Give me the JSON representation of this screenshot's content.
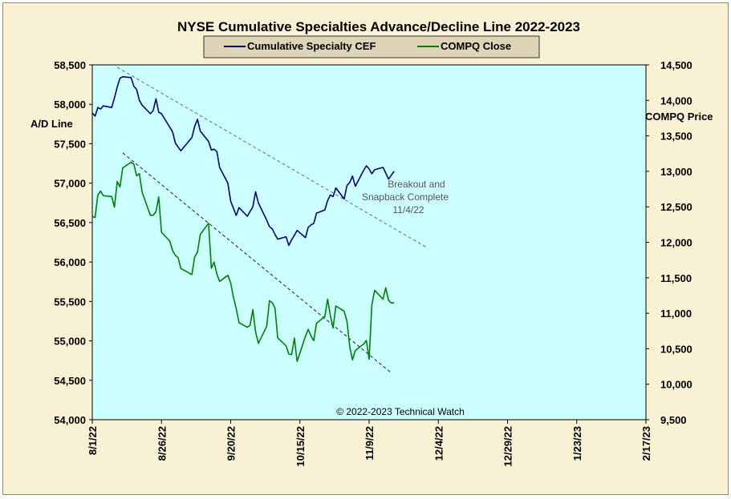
{
  "chart_data": {
    "type": "line",
    "title": "NYSE Cumulative  Specialties  Advance/Decline  Line  2022-2023",
    "left_axis": {
      "label": "A/D Line",
      "ylim": [
        54000,
        58500
      ],
      "ticks": [
        "54,000",
        "54,500",
        "55,000",
        "55,500",
        "56,000",
        "56,500",
        "57,000",
        "57,500",
        "58,000",
        "58,500"
      ]
    },
    "right_axis": {
      "label": "COMPQ Price",
      "ylim": [
        9500,
        14500
      ],
      "ticks": [
        "9,500",
        "10,000",
        "10,500",
        "11,000",
        "11,500",
        "12,000",
        "12,500",
        "13,000",
        "13,500",
        "14,000",
        "14,500"
      ]
    },
    "x_axis": {
      "start": "2022-08-01",
      "end": "2023-02-17",
      "tick_labels": [
        "8/1/22",
        "8/26/22",
        "9/20/22",
        "10/15/22",
        "11/9/22",
        "12/4/22",
        "12/29/22",
        "1/23/23",
        "2/17/23"
      ]
    },
    "grid": false,
    "legend_position": "top-center",
    "series": [
      {
        "name": "Cumulative Specialty CEF",
        "axis": "left",
        "color": "#000080",
        "x": [
          "2022-08-01",
          "2022-08-02",
          "2022-08-03",
          "2022-08-04",
          "2022-08-05",
          "2022-08-08",
          "2022-08-09",
          "2022-08-10",
          "2022-08-11",
          "2022-08-12",
          "2022-08-15",
          "2022-08-16",
          "2022-08-17",
          "2022-08-18",
          "2022-08-19",
          "2022-08-22",
          "2022-08-23",
          "2022-08-24",
          "2022-08-25",
          "2022-08-26",
          "2022-08-29",
          "2022-08-30",
          "2022-08-31",
          "2022-09-01",
          "2022-09-02",
          "2022-09-06",
          "2022-09-07",
          "2022-09-08",
          "2022-09-09",
          "2022-09-12",
          "2022-09-13",
          "2022-09-14",
          "2022-09-15",
          "2022-09-16",
          "2022-09-19",
          "2022-09-20",
          "2022-09-21",
          "2022-09-22",
          "2022-09-23",
          "2022-09-26",
          "2022-09-27",
          "2022-09-28",
          "2022-09-29",
          "2022-09-30",
          "2022-10-03",
          "2022-10-04",
          "2022-10-05",
          "2022-10-06",
          "2022-10-07",
          "2022-10-10",
          "2022-10-11",
          "2022-10-12",
          "2022-10-13",
          "2022-10-14",
          "2022-10-17",
          "2022-10-18",
          "2022-10-19",
          "2022-10-20",
          "2022-10-21",
          "2022-10-24",
          "2022-10-25",
          "2022-10-26",
          "2022-10-27",
          "2022-10-28",
          "2022-10-31",
          "2022-11-01",
          "2022-11-02",
          "2022-11-03",
          "2022-11-04",
          "2022-11-07",
          "2022-11-08",
          "2022-11-09",
          "2022-11-10",
          "2022-11-11",
          "2022-11-14",
          "2022-11-15",
          "2022-11-16",
          "2022-11-17",
          "2022-11-18"
        ],
        "values": [
          57890,
          57850,
          57960,
          57940,
          57980,
          57960,
          58080,
          58220,
          58330,
          58350,
          58340,
          58230,
          58190,
          58050,
          57990,
          57880,
          57920,
          58070,
          57900,
          57880,
          57710,
          57650,
          57510,
          57460,
          57410,
          57580,
          57720,
          57810,
          57660,
          57530,
          57420,
          57430,
          57400,
          57200,
          57000,
          56770,
          56680,
          56590,
          56690,
          56580,
          56640,
          56700,
          56890,
          56750,
          56530,
          56450,
          56420,
          56350,
          56290,
          56320,
          56210,
          56280,
          56340,
          56400,
          56310,
          56440,
          56470,
          56490,
          56620,
          56660,
          56780,
          56850,
          56830,
          56940,
          56800,
          56970,
          57010,
          57090,
          56960,
          57160,
          57220,
          57180,
          57120,
          57170,
          57200,
          57130,
          57050,
          57100,
          57150
        ]
      },
      {
        "name": "COMPQ Close",
        "axis": "right",
        "color": "#008000",
        "x": [
          "2022-08-01",
          "2022-08-02",
          "2022-08-03",
          "2022-08-04",
          "2022-08-05",
          "2022-08-08",
          "2022-08-09",
          "2022-08-10",
          "2022-08-11",
          "2022-08-12",
          "2022-08-15",
          "2022-08-16",
          "2022-08-17",
          "2022-08-18",
          "2022-08-19",
          "2022-08-22",
          "2022-08-23",
          "2022-08-24",
          "2022-08-25",
          "2022-08-26",
          "2022-08-29",
          "2022-08-30",
          "2022-08-31",
          "2022-09-01",
          "2022-09-02",
          "2022-09-06",
          "2022-09-07",
          "2022-09-08",
          "2022-09-09",
          "2022-09-12",
          "2022-09-13",
          "2022-09-14",
          "2022-09-15",
          "2022-09-16",
          "2022-09-19",
          "2022-09-20",
          "2022-09-21",
          "2022-09-22",
          "2022-09-23",
          "2022-09-26",
          "2022-09-27",
          "2022-09-28",
          "2022-09-29",
          "2022-09-30",
          "2022-10-03",
          "2022-10-04",
          "2022-10-05",
          "2022-10-06",
          "2022-10-07",
          "2022-10-10",
          "2022-10-11",
          "2022-10-12",
          "2022-10-13",
          "2022-10-14",
          "2022-10-17",
          "2022-10-18",
          "2022-10-19",
          "2022-10-20",
          "2022-10-21",
          "2022-10-24",
          "2022-10-25",
          "2022-10-26",
          "2022-10-27",
          "2022-10-28",
          "2022-10-31",
          "2022-11-01",
          "2022-11-02",
          "2022-11-03",
          "2022-11-04",
          "2022-11-07",
          "2022-11-08",
          "2022-11-09",
          "2022-11-10",
          "2022-11-11",
          "2022-11-14",
          "2022-11-15",
          "2022-11-16",
          "2022-11-17",
          "2022-11-18"
        ],
        "values": [
          12368,
          12349,
          12668,
          12721,
          12657,
          12644,
          12494,
          12855,
          12780,
          13047,
          13128,
          13102,
          12938,
          12966,
          12706,
          12381,
          12382,
          12432,
          12639,
          12142,
          12017,
          11883,
          11816,
          11785,
          11631,
          11545,
          11792,
          11862,
          12112,
          12267,
          11634,
          11720,
          11552,
          11448,
          11535,
          11425,
          11220,
          11066,
          10868,
          10803,
          10829,
          11052,
          10738,
          10576,
          10816,
          11176,
          11148,
          11073,
          10652,
          10542,
          10426,
          10418,
          10650,
          10321,
          10676,
          10773,
          10680,
          10614,
          10860,
          10953,
          11199,
          10970,
          10792,
          11103,
          11028,
          10891,
          10525,
          10343,
          10475,
          10565,
          10617,
          10353,
          11114,
          11324,
          11197,
          11359,
          11184,
          11145,
          11147
        ]
      }
    ],
    "trendlines": [
      {
        "axis": "left",
        "from": [
          "2022-08-10",
          58470
        ],
        "to": [
          "2022-11-30",
          56180
        ],
        "color": "#808080"
      },
      {
        "axis": "right",
        "from": [
          "2022-08-12",
          13260
        ],
        "to": [
          "2022-11-17",
          10160
        ],
        "color": "#404040"
      }
    ],
    "annotations": [
      {
        "lines": [
          "Breakout and",
          "Snapback Complete"
        ],
        "date_text": "11/4/22"
      },
      {
        "lines": [
          "© 2022-2023  Technical Watch"
        ]
      }
    ],
    "colors": {
      "background": "#f8f1d4",
      "plot_area": "#ccffff",
      "legend_box": "#ddd5b5"
    }
  }
}
